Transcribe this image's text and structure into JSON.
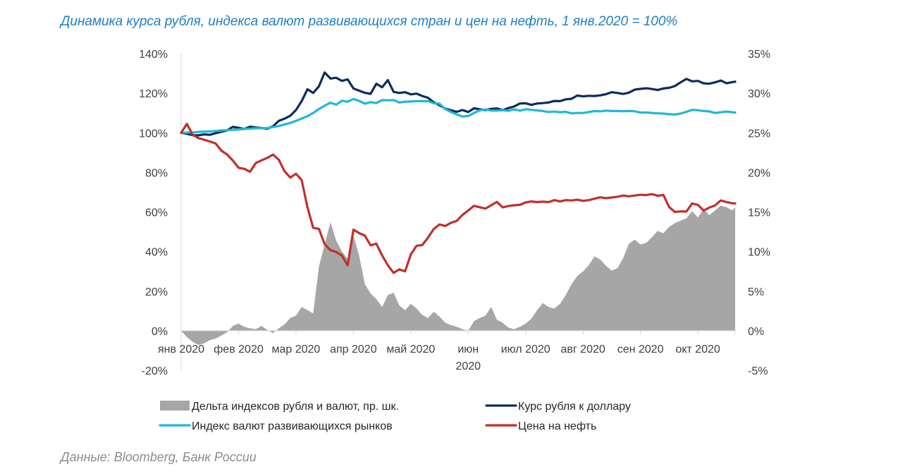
{
  "title": "Динамика курса рубля, индекса валют развивающихся стран и цен на нефть, 1 янв.2020 = 100%",
  "source": "Данные: Bloomberg, Банк России",
  "chart_data": {
    "type": "line",
    "grid": false,
    "legend_position": "bottom",
    "y_left": {
      "ylim": [
        -20,
        140
      ],
      "ticks": [
        140,
        120,
        100,
        80,
        60,
        40,
        20,
        0,
        -20
      ],
      "tick_labels": [
        "140%",
        "120%",
        "100%",
        "80%",
        "60%",
        "40%",
        "20%",
        "0%",
        "-20%"
      ]
    },
    "y_right": {
      "ylim": [
        -5,
        35
      ],
      "ticks": [
        35,
        30,
        25,
        20,
        15,
        10,
        5,
        0,
        -5
      ],
      "tick_labels": [
        "35%",
        "30%",
        "25%",
        "20%",
        "15%",
        "10%",
        "5%",
        "0%",
        "-5%"
      ]
    },
    "x_axis": {
      "range": [
        0,
        9.65
      ],
      "ticks": [
        0,
        1,
        2,
        3,
        4,
        5,
        6,
        7,
        8,
        9
      ],
      "tick_labels": [
        "янв 2020",
        "фев 2020",
        "мар 2020",
        "апр 2020",
        "май 2020",
        "июн 2020",
        "июл 2020",
        "авг 2020",
        "сен 2020",
        "окт 2020"
      ]
    },
    "series": [
      {
        "name": "Дельта индексов рубля и валют, пр. шк.",
        "type": "area",
        "axis": "right",
        "color": "#a6a6a6",
        "x": [
          0,
          0.1,
          0.2,
          0.3,
          0.4,
          0.5,
          0.6,
          0.7,
          0.8,
          0.9,
          1.0,
          1.1,
          1.2,
          1.3,
          1.4,
          1.5,
          1.6,
          1.7,
          1.8,
          1.9,
          2.0,
          2.1,
          2.2,
          2.3,
          2.4,
          2.5,
          2.6,
          2.7,
          2.8,
          2.9,
          3.0,
          3.1,
          3.2,
          3.3,
          3.4,
          3.5,
          3.6,
          3.7,
          3.8,
          3.9,
          4.0,
          4.1,
          4.2,
          4.3,
          4.4,
          4.5,
          4.6,
          4.7,
          4.8,
          4.9,
          5.0,
          5.1,
          5.2,
          5.3,
          5.4,
          5.5,
          5.6,
          5.7,
          5.8,
          5.9,
          6.0,
          6.1,
          6.2,
          6.3,
          6.4,
          6.5,
          6.6,
          6.7,
          6.8,
          6.9,
          7.0,
          7.1,
          7.2,
          7.3,
          7.4,
          7.5,
          7.6,
          7.7,
          7.8,
          7.9,
          8.0,
          8.1,
          8.2,
          8.3,
          8.4,
          8.5,
          8.6,
          8.7,
          8.8,
          8.9,
          9.0,
          9.1,
          9.2,
          9.3,
          9.4,
          9.5,
          9.6,
          9.65
        ],
        "values": [
          0,
          -0.8,
          -1.4,
          -1.8,
          -1.6,
          -1.2,
          -1.0,
          -0.6,
          -0.2,
          0.6,
          0.9,
          0.5,
          0.3,
          0.2,
          0.6,
          0.1,
          -0.3,
          0.3,
          0.8,
          1.6,
          1.9,
          3.0,
          2.6,
          2.2,
          8.1,
          10.9,
          13.7,
          11.4,
          10.0,
          9.1,
          12.0,
          9.5,
          5.9,
          4.7,
          4.0,
          3.0,
          4.5,
          4.8,
          3.2,
          2.6,
          3.4,
          2.8,
          2.0,
          1.6,
          2.4,
          1.8,
          1.0,
          0.7,
          0.5,
          0.2,
          0.0,
          1.2,
          1.6,
          1.9,
          3.0,
          1.4,
          1.0,
          0.4,
          0.2,
          0.5,
          0.9,
          1.5,
          2.6,
          3.5,
          3.0,
          2.8,
          3.4,
          4.5,
          5.9,
          6.9,
          7.5,
          8.3,
          9.4,
          9.0,
          8.2,
          7.6,
          7.9,
          9.2,
          11.0,
          11.5,
          10.9,
          11.1,
          11.8,
          12.6,
          12.3,
          13.1,
          13.6,
          13.9,
          14.2,
          15.1,
          14.3,
          15.4,
          14.6,
          15.2,
          15.8,
          15.6,
          15.2,
          15.6
        ]
      },
      {
        "name": "Курс рубля к доллару",
        "type": "line",
        "axis": "left",
        "color": "#0d2c5e",
        "x": [
          0,
          0.1,
          0.2,
          0.3,
          0.4,
          0.5,
          0.6,
          0.7,
          0.8,
          0.9,
          1.0,
          1.1,
          1.2,
          1.3,
          1.4,
          1.5,
          1.6,
          1.7,
          1.8,
          1.9,
          2.0,
          2.1,
          2.2,
          2.3,
          2.4,
          2.5,
          2.6,
          2.7,
          2.8,
          2.9,
          3.0,
          3.1,
          3.2,
          3.3,
          3.4,
          3.5,
          3.6,
          3.7,
          3.8,
          3.9,
          4.0,
          4.1,
          4.2,
          4.3,
          4.4,
          4.5,
          4.6,
          4.7,
          4.8,
          4.9,
          5.0,
          5.1,
          5.2,
          5.3,
          5.4,
          5.5,
          5.6,
          5.7,
          5.8,
          5.9,
          6.0,
          6.1,
          6.2,
          6.3,
          6.4,
          6.5,
          6.6,
          6.7,
          6.8,
          6.9,
          7.0,
          7.1,
          7.2,
          7.3,
          7.4,
          7.5,
          7.6,
          7.7,
          7.8,
          7.9,
          8.0,
          8.1,
          8.2,
          8.3,
          8.4,
          8.5,
          8.6,
          8.7,
          8.8,
          8.9,
          9.0,
          9.1,
          9.2,
          9.3,
          9.4,
          9.5,
          9.6,
          9.65
        ],
        "values": [
          100,
          99.5,
          98.8,
          98.7,
          99.2,
          99.0,
          99.8,
          100.5,
          101.2,
          103.0,
          102.5,
          101.9,
          103.1,
          102.7,
          102.4,
          102.0,
          103.3,
          106.0,
          107.1,
          108.6,
          111.5,
          116.0,
          122.0,
          120.1,
          123.5,
          130.5,
          127.4,
          127.8,
          126.2,
          127.0,
          122.4,
          121.3,
          120.2,
          119.7,
          124.8,
          123.0,
          126.6,
          120.7,
          120.1,
          120.5,
          119.4,
          119.8,
          118.6,
          117.7,
          115.4,
          113.9,
          112.2,
          111.4,
          110.6,
          111.5,
          110.5,
          112.4,
          111.9,
          111.5,
          112.1,
          112.3,
          111.4,
          112.5,
          113.3,
          114.8,
          114.9,
          114.1,
          114.8,
          115.0,
          115.3,
          116.1,
          116.0,
          116.9,
          117.2,
          118.8,
          118.4,
          118.7,
          118.6,
          118.9,
          119.5,
          120.5,
          120.1,
          119.6,
          120.3,
          121.8,
          122.2,
          122.5,
          122.1,
          121.6,
          122.4,
          122.7,
          123.6,
          125.5,
          127.2,
          126.0,
          126.2,
          125.0,
          124.8,
          125.5,
          126.4,
          125.0,
          125.6,
          125.8
        ]
      },
      {
        "name": "Индекс валют развивающихся рынков",
        "type": "line",
        "axis": "left",
        "color": "#1fb8d8",
        "x": [
          0,
          0.1,
          0.2,
          0.3,
          0.4,
          0.5,
          0.6,
          0.7,
          0.8,
          0.9,
          1.0,
          1.1,
          1.2,
          1.3,
          1.4,
          1.5,
          1.6,
          1.7,
          1.8,
          1.9,
          2.0,
          2.1,
          2.2,
          2.3,
          2.4,
          2.5,
          2.6,
          2.7,
          2.8,
          2.9,
          3.0,
          3.1,
          3.2,
          3.3,
          3.4,
          3.5,
          3.6,
          3.7,
          3.8,
          3.9,
          4.0,
          4.1,
          4.2,
          4.3,
          4.4,
          4.5,
          4.6,
          4.7,
          4.8,
          4.9,
          5.0,
          5.1,
          5.2,
          5.3,
          5.4,
          5.5,
          5.6,
          5.7,
          5.8,
          5.9,
          6.0,
          6.1,
          6.2,
          6.3,
          6.4,
          6.5,
          6.6,
          6.7,
          6.8,
          6.9,
          7.0,
          7.1,
          7.2,
          7.3,
          7.4,
          7.5,
          7.6,
          7.7,
          7.8,
          7.9,
          8.0,
          8.1,
          8.2,
          8.3,
          8.4,
          8.5,
          8.6,
          8.7,
          8.8,
          8.9,
          9.0,
          9.1,
          9.2,
          9.3,
          9.4,
          9.5,
          9.6,
          9.65
        ],
        "values": [
          100,
          100.1,
          100.2,
          100.4,
          100.6,
          100.7,
          100.9,
          101.2,
          101.3,
          101.5,
          101.7,
          101.9,
          102.1,
          102.3,
          102.3,
          102.4,
          102.9,
          103.4,
          104.2,
          105.0,
          106.0,
          107.2,
          108.4,
          110.0,
          112.0,
          113.7,
          115.2,
          114.2,
          116.2,
          115.7,
          117.1,
          116.1,
          114.7,
          115.5,
          115.0,
          116.5,
          116.4,
          116.5,
          115.3,
          115.7,
          115.8,
          116.0,
          116.0,
          116.0,
          114.9,
          114.7,
          112.0,
          110.5,
          109.3,
          108.2,
          108.5,
          110.0,
          111.3,
          111.8,
          111.2,
          111.2,
          111.4,
          111.1,
          111.8,
          111.2,
          111.9,
          111.6,
          111.3,
          111.0,
          110.5,
          110.7,
          110.4,
          110.6,
          109.8,
          110.0,
          110.0,
          110.5,
          111.0,
          110.8,
          111.2,
          111.0,
          111.0,
          110.9,
          111.0,
          110.9,
          110.2,
          110.3,
          110.0,
          109.8,
          109.7,
          109.4,
          109.2,
          109.7,
          110.6,
          111.6,
          111.4,
          111.0,
          110.8,
          110.0,
          110.4,
          110.7,
          110.4,
          110.2
        ]
      },
      {
        "name": "Цена на нефть",
        "type": "line",
        "axis": "left",
        "color": "#c0302b",
        "x": [
          0,
          0.1,
          0.2,
          0.3,
          0.4,
          0.5,
          0.6,
          0.7,
          0.8,
          0.9,
          1.0,
          1.1,
          1.2,
          1.3,
          1.4,
          1.5,
          1.6,
          1.7,
          1.8,
          1.9,
          2.0,
          2.1,
          2.2,
          2.3,
          2.4,
          2.5,
          2.6,
          2.7,
          2.8,
          2.9,
          3.0,
          3.1,
          3.2,
          3.3,
          3.4,
          3.5,
          3.6,
          3.7,
          3.8,
          3.9,
          4.0,
          4.1,
          4.2,
          4.3,
          4.4,
          4.5,
          4.6,
          4.7,
          4.8,
          4.9,
          5.0,
          5.1,
          5.2,
          5.3,
          5.4,
          5.5,
          5.6,
          5.7,
          5.8,
          5.9,
          6.0,
          6.1,
          6.2,
          6.3,
          6.4,
          6.5,
          6.6,
          6.7,
          6.8,
          6.9,
          7.0,
          7.1,
          7.2,
          7.3,
          7.4,
          7.5,
          7.6,
          7.7,
          7.8,
          7.9,
          8.0,
          8.1,
          8.2,
          8.3,
          8.4,
          8.5,
          8.6,
          8.7,
          8.8,
          8.9,
          9.0,
          9.1,
          9.2,
          9.3,
          9.4,
          9.5,
          9.6,
          9.65
        ],
        "values": [
          100,
          104.5,
          99.0,
          97.3,
          96.5,
          95.6,
          94.6,
          91.0,
          89.0,
          86.0,
          82.3,
          81.8,
          80.3,
          84.7,
          86.1,
          87.3,
          89.0,
          86.4,
          80.6,
          77.4,
          79.3,
          76.1,
          62.4,
          52.0,
          51.4,
          43.7,
          40.7,
          39.8,
          38.0,
          33.1,
          51.1,
          49.3,
          48.1,
          43.1,
          44.0,
          38.1,
          33.1,
          29.2,
          31.0,
          30.0,
          38.5,
          42.9,
          43.3,
          47.0,
          51.4,
          53.7,
          52.9,
          54.5,
          55.5,
          58.5,
          60.7,
          63.1,
          62.4,
          61.7,
          63.4,
          65.1,
          62.3,
          63.0,
          63.4,
          63.6,
          64.8,
          65.3,
          65.0,
          65.2,
          65.0,
          66.0,
          65.3,
          66.0,
          65.8,
          66.2,
          65.6,
          66.0,
          66.7,
          67.4,
          67.0,
          67.3,
          67.7,
          68.3,
          67.9,
          68.3,
          68.7,
          68.5,
          69.0,
          68.2,
          68.6,
          62.5,
          60.0,
          60.3,
          60.2,
          64.3,
          63.6,
          60.7,
          62.2,
          63.3,
          65.8,
          65.0,
          64.4,
          64.3
        ]
      }
    ]
  },
  "legend": [
    {
      "label": "Дельта индексов рубля и валют, пр. шк.",
      "kind": "area",
      "color": "#a6a6a6"
    },
    {
      "label": "Курс рубля к доллару",
      "kind": "line",
      "color": "#0d2c5e"
    },
    {
      "label": "Индекс валют развивающихся рынков",
      "kind": "line",
      "color": "#1fb8d8"
    },
    {
      "label": "Цена на нефть",
      "kind": "line",
      "color": "#c0302b"
    }
  ]
}
